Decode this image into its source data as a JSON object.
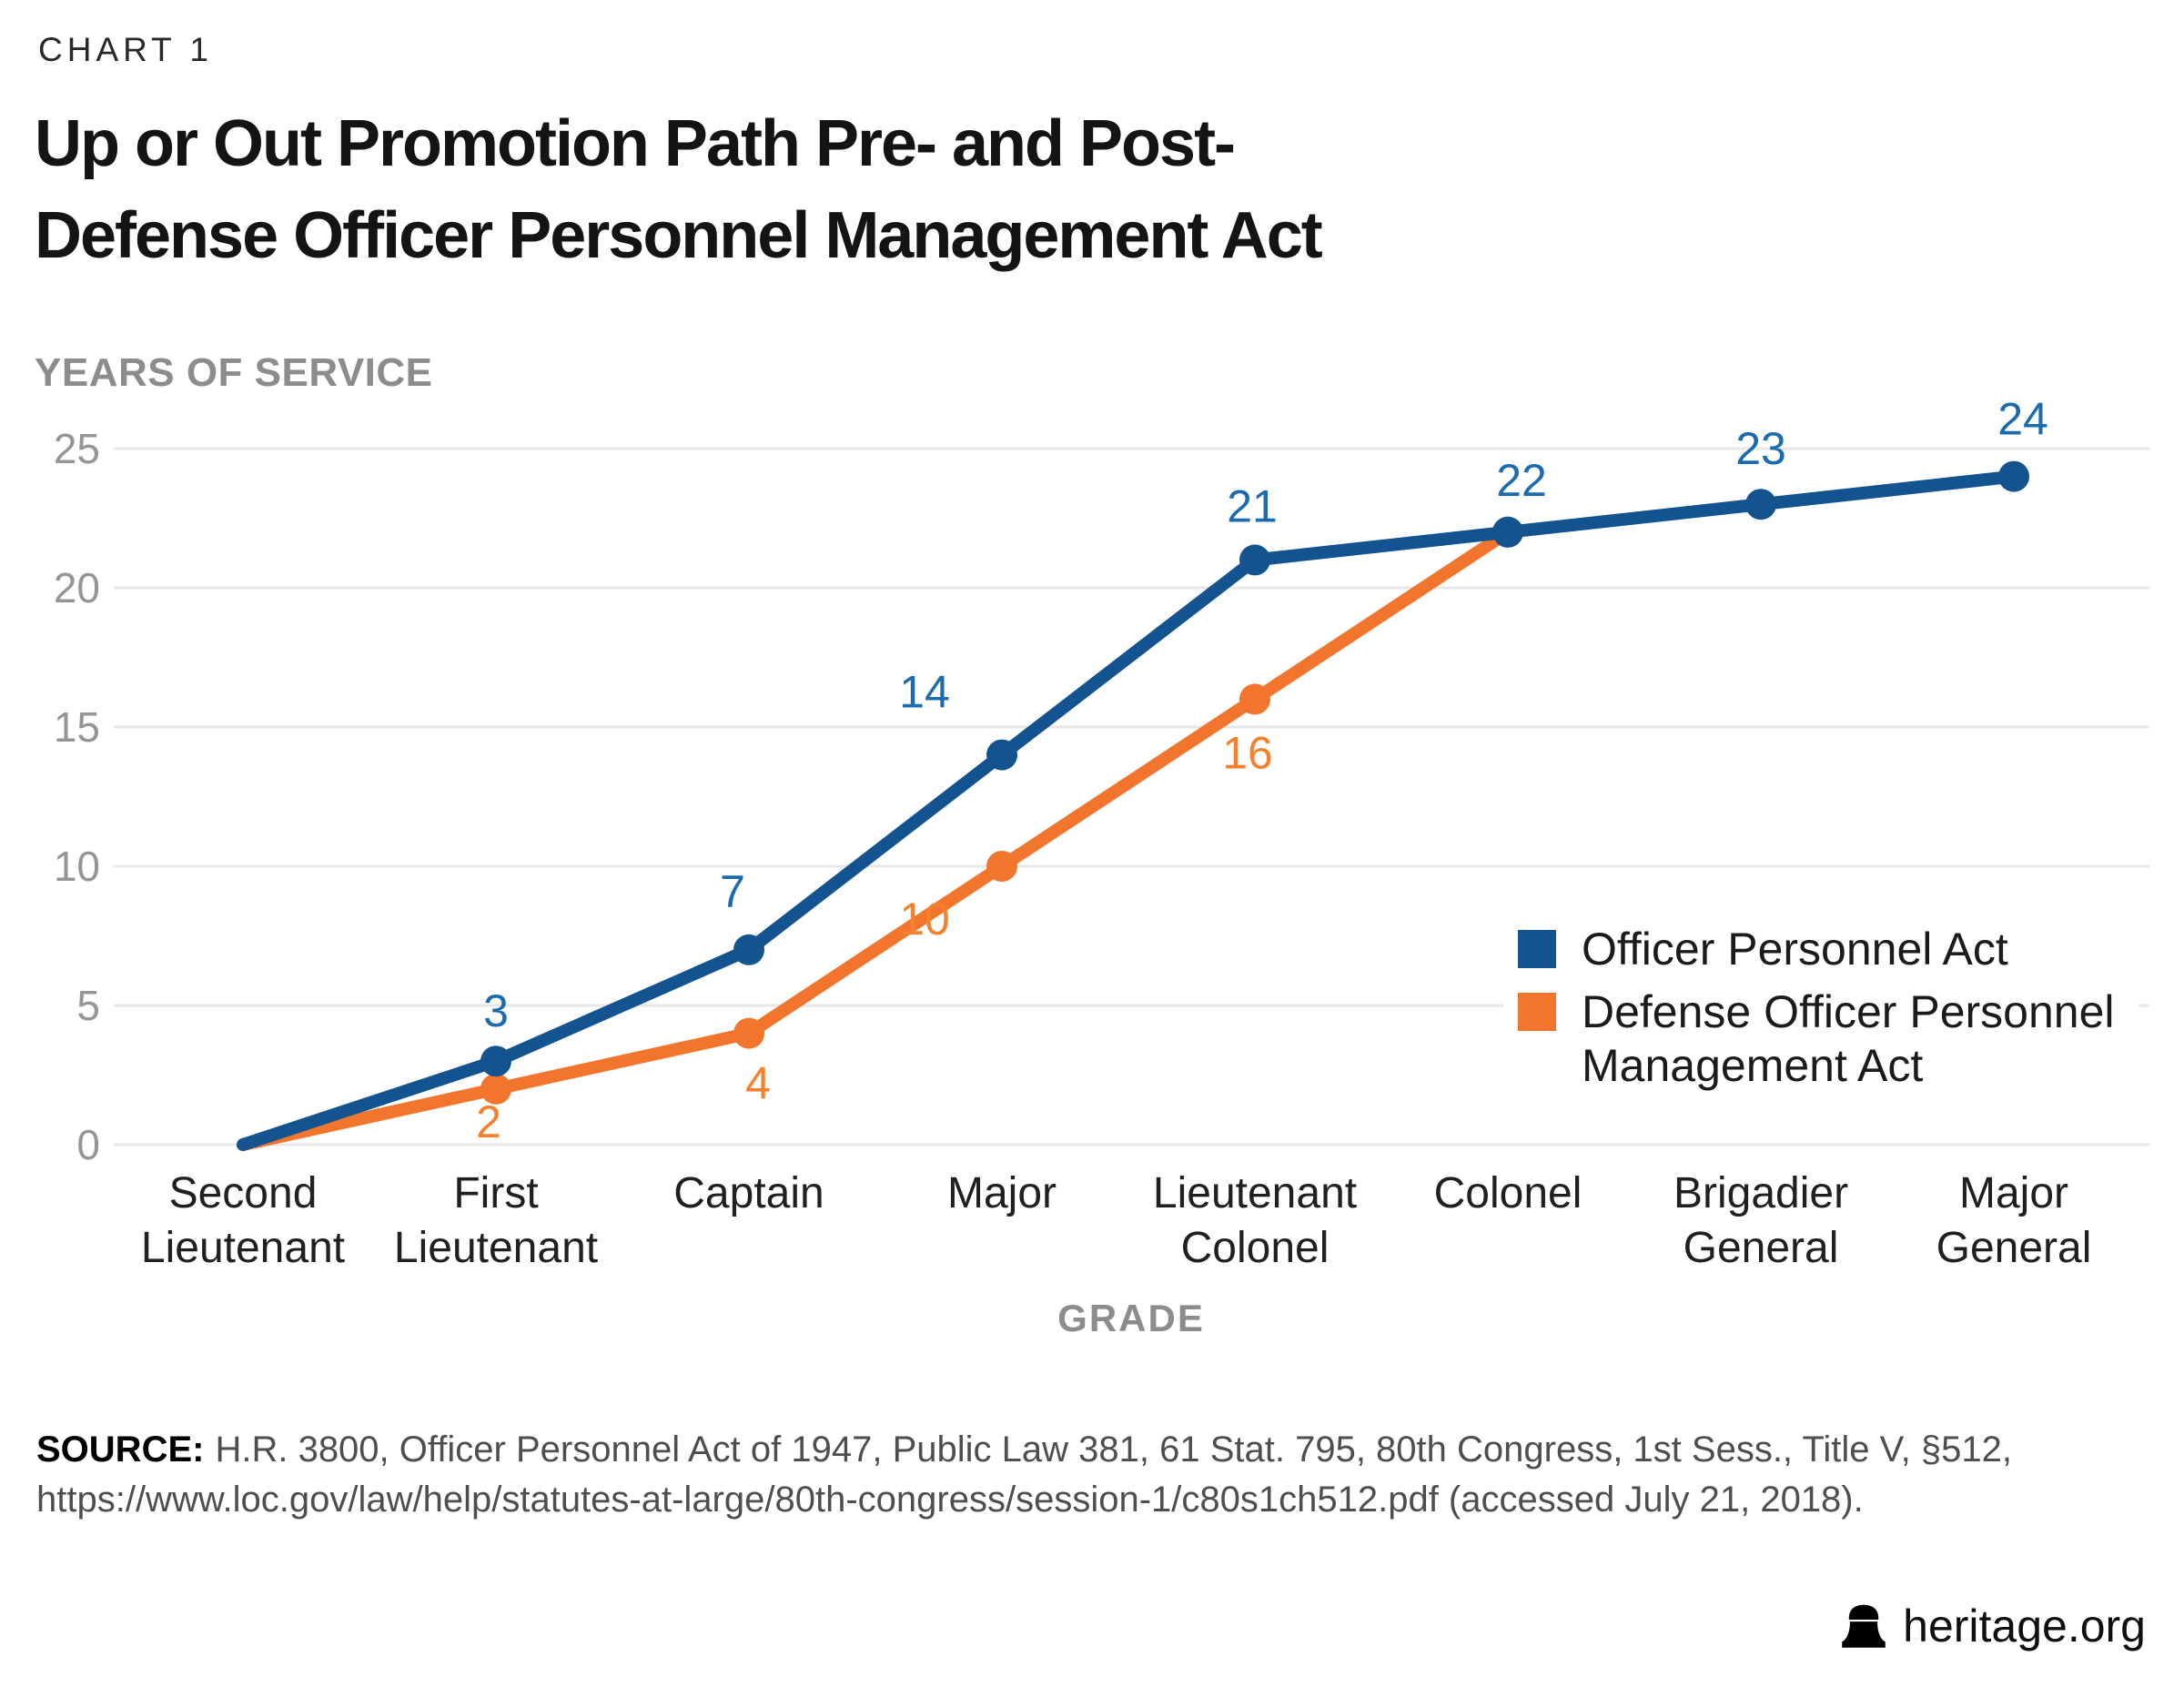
{
  "page": {
    "chart_label": "CHART 1",
    "title_lines": [
      "Up or Out Promotion Path Pre- and Post-",
      "Defense Officer Personnel Management Act"
    ]
  },
  "legend": {
    "wrap": [
      [
        "Officer Personnel Act"
      ],
      [
        "Defense Officer Personnel",
        "Management Act"
      ]
    ]
  },
  "source": {
    "label": "SOURCE:",
    "line1": "H.R. 3800, Officer Personnel Act of 1947, Public Law 381, 61 Stat. 795, 80th Congress, 1st Sess., Title V, §512,",
    "line2": "https://www.loc.gov/law/help/statutes-at-large/80th-congress/session-1/c80s1ch512.pdf (accessed July 21, 2018)."
  },
  "footer": {
    "brand": "heritage.org",
    "bell_icon": "liberty-bell-icon"
  },
  "chart_data": {
    "type": "line",
    "title": "Up or Out Promotion Path Pre- and Post-Defense Officer Personnel Management Act",
    "xlabel": "GRADE",
    "ylabel": "YEARS OF SERVICE",
    "ylim": [
      0,
      25
    ],
    "yticks": [
      0,
      5,
      10,
      15,
      20,
      25
    ],
    "grid": "horizontal",
    "legend_position": "inside-right",
    "categories": [
      "Second Lieutenant",
      "First Lieutenant",
      "Captain",
      "Major",
      "Lieutenant Colonel",
      "Colonel",
      "Brigadier General",
      "Major General"
    ],
    "categories_wrapped": [
      [
        "Second",
        "Lieutenant"
      ],
      [
        "First",
        "Lieutenant"
      ],
      [
        "Captain"
      ],
      [
        "Major"
      ],
      [
        "Lieutenant",
        "Colonel"
      ],
      [
        "Colonel"
      ],
      [
        "Brigadier",
        "General"
      ],
      [
        "Major",
        "General"
      ]
    ],
    "series": [
      {
        "name": "Officer Personnel Act",
        "color": "#125390",
        "label_color": "#1C6BAE",
        "values": [
          0,
          3,
          7,
          14,
          21,
          22,
          23,
          24
        ]
      },
      {
        "name": "Defense Officer Personnel Management Act",
        "color": "#F1752C",
        "label_color": "#F5812D",
        "values": [
          0,
          2,
          4,
          10,
          16,
          22
        ]
      }
    ],
    "colors": {
      "grid": "#E7E7E9",
      "tick": "#939598",
      "axis_title": "#8A8C8E",
      "category": "#202022"
    }
  }
}
